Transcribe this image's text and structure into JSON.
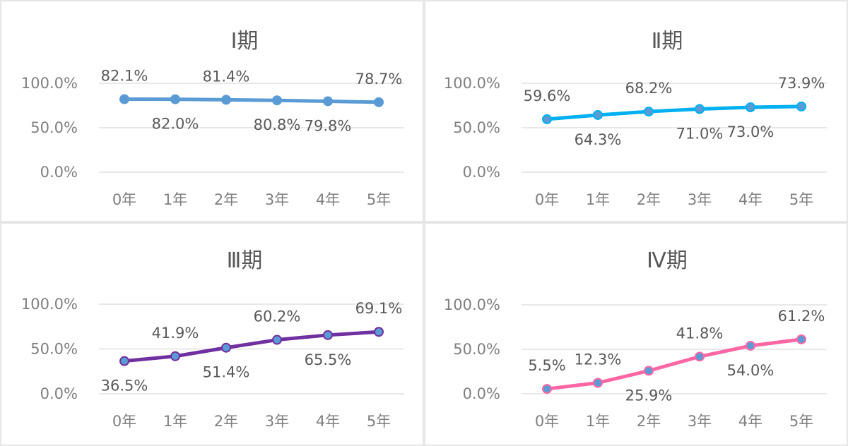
{
  "chart_data": [
    {
      "type": "line",
      "title": "Ⅰ期",
      "categories": [
        "0年",
        "1年",
        "2年",
        "3年",
        "4年",
        "5年"
      ],
      "values": [
        82.1,
        82.0,
        81.4,
        80.8,
        79.8,
        78.7
      ],
      "data_labels": [
        "82.1%",
        "82.0%",
        "81.4%",
        "80.8%",
        "79.8%",
        "78.7%"
      ],
      "label_positions": [
        "above",
        "below",
        "above",
        "below",
        "below",
        "above"
      ],
      "yticks": [
        "0.0%",
        "50.0%",
        "100.0%"
      ],
      "ylim": [
        0,
        100
      ],
      "color": "#5b9bd5",
      "marker_color": "#5b9bd5",
      "grid": true
    },
    {
      "type": "line",
      "title": "Ⅱ期",
      "categories": [
        "0年",
        "1年",
        "2年",
        "3年",
        "4年",
        "5年"
      ],
      "values": [
        59.6,
        64.3,
        68.2,
        71.0,
        73.0,
        73.9
      ],
      "data_labels": [
        "59.6%",
        "64.3%",
        "68.2%",
        "71.0%",
        "73.0%",
        "73.9%"
      ],
      "label_positions": [
        "above",
        "below",
        "above",
        "below",
        "below",
        "above"
      ],
      "yticks": [
        "0.0%",
        "50.0%",
        "100.0%"
      ],
      "ylim": [
        0,
        100
      ],
      "color": "#00b0f0",
      "marker_color": "#5b9bd5",
      "grid": true
    },
    {
      "type": "line",
      "title": "Ⅲ期",
      "categories": [
        "0年",
        "1年",
        "2年",
        "3年",
        "4年",
        "5年"
      ],
      "values": [
        36.5,
        41.9,
        51.4,
        60.2,
        65.5,
        69.1
      ],
      "data_labels": [
        "36.5%",
        "41.9%",
        "51.4%",
        "60.2%",
        "65.5%",
        "69.1%"
      ],
      "label_positions": [
        "below",
        "above",
        "below",
        "above",
        "below",
        "above"
      ],
      "yticks": [
        "0.0%",
        "50.0%",
        "100.0%"
      ],
      "ylim": [
        0,
        100
      ],
      "color": "#7030a0",
      "marker_color": "#5b9bd5",
      "grid": true
    },
    {
      "type": "line",
      "title": "Ⅳ期",
      "categories": [
        "0年",
        "1年",
        "2年",
        "3年",
        "4年",
        "5年"
      ],
      "values": [
        5.5,
        12.3,
        25.9,
        41.8,
        54.0,
        61.2
      ],
      "data_labels": [
        "5.5%",
        "12.3%",
        "25.9%",
        "41.8%",
        "54.0%",
        "61.2%"
      ],
      "label_positions": [
        "above",
        "above",
        "below",
        "above",
        "below",
        "above"
      ],
      "yticks": [
        "0.0%",
        "50.0%",
        "100.0%"
      ],
      "ylim": [
        0,
        100
      ],
      "color": "#ff66a3",
      "marker_color": "#5b9bd5",
      "grid": true
    }
  ]
}
